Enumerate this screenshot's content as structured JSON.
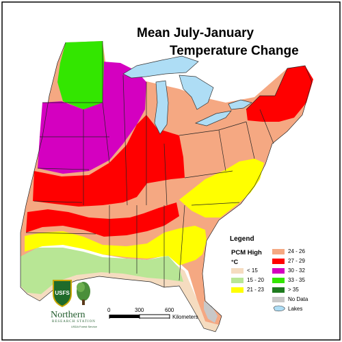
{
  "title_line1": "Mean July-January",
  "title_line2": "Temperature Change",
  "legend": {
    "title": "Legend",
    "subtitle": "PCM High",
    "unit": "°C",
    "items": [
      {
        "label": "< 15",
        "color": "#f5dcc0"
      },
      {
        "label": "15 - 20",
        "color": "#b8e695"
      },
      {
        "label": "21 - 23",
        "color": "#ffff00"
      },
      {
        "label": "24 - 26",
        "color": "#f5a882"
      },
      {
        "label": "27 - 29",
        "color": "#ff0000"
      },
      {
        "label": "30 - 32",
        "color": "#d400c0"
      },
      {
        "label": "33 - 35",
        "color": "#33e600"
      },
      {
        "label": "> 35",
        "color": "#1e7a1e"
      },
      {
        "label": "No Data",
        "color": "#c8c8c8"
      },
      {
        "label": "Lakes",
        "color": "#aeddf5"
      }
    ]
  },
  "scale": {
    "ticks": [
      "0",
      "300",
      "600"
    ],
    "unit_label": "Kilometers"
  },
  "logo": {
    "shield_text": "USFS",
    "name": "Northern",
    "subname": "RESEARCH STATION",
    "agency": "USDA Forest Service"
  }
}
